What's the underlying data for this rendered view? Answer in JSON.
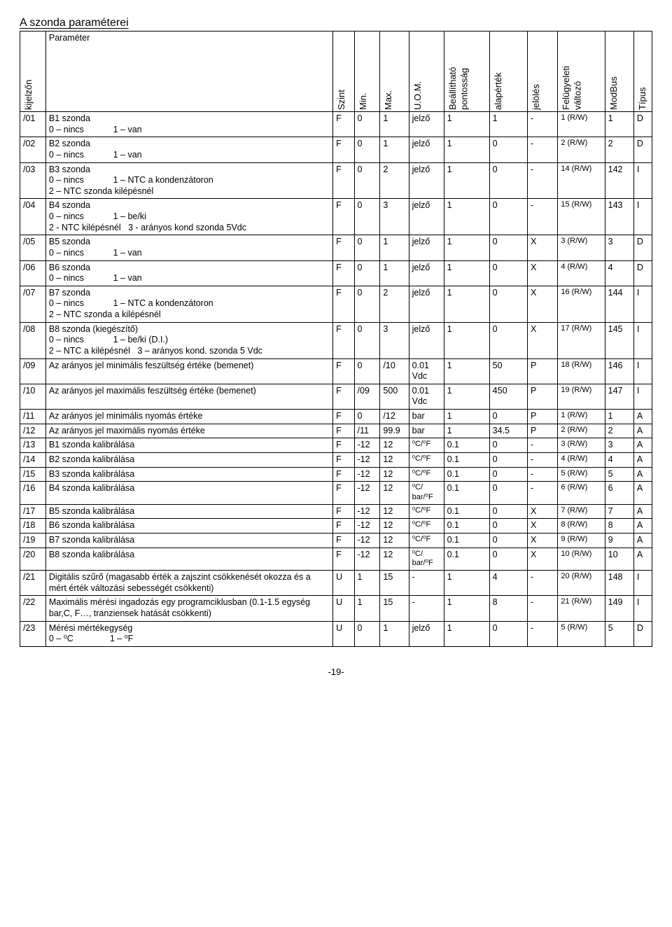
{
  "title": "A szonda paraméterei",
  "pageNumber": "-19-",
  "headers": {
    "c0": "kijelzőn",
    "c1": "Paraméter",
    "c2": "Szint",
    "c3": "Min.",
    "c4": "Max.",
    "c5": "U.O.M.",
    "c6": "Beállítható pontosság",
    "c7": "alapérték",
    "c8": "jelölés",
    "c9": "Felügyeleti változó",
    "c10": "ModBus",
    "c11": "Típus"
  },
  "rows": [
    {
      "code": "/01",
      "param": "B1 szonda\n0 – nincs            1 – van",
      "szint": "F",
      "min": "0",
      "max": "1",
      "uom": "jelző",
      "pont": "1",
      "alap": "1",
      "jel": "-",
      "fel": "1 (R/W)",
      "mod": "1",
      "tip": "D"
    },
    {
      "code": "/02",
      "param": "B2 szonda\n0 – nincs            1 – van",
      "szint": "F",
      "min": "0",
      "max": "1",
      "uom": "jelző",
      "pont": "1",
      "alap": "0",
      "jel": "-",
      "fel": "2 (R/W)",
      "mod": "2",
      "tip": "D"
    },
    {
      "code": "/03",
      "param": "B3 szonda\n0 – nincs            1 – NTC a kondenzátoron\n2 – NTC szonda kilépésnél",
      "szint": "F",
      "min": "0",
      "max": "2",
      "uom": "jelző",
      "pont": "1",
      "alap": "0",
      "jel": "-",
      "fel": "14 (R/W)",
      "mod": "142",
      "tip": "I"
    },
    {
      "code": "/04",
      "param": "B4 szonda\n0 – nincs            1 – be/ki\n2 - NTC kilépésnél   3 - arányos kond szonda 5Vdc",
      "szint": "F",
      "min": "0",
      "max": "3",
      "uom": "jelző",
      "pont": "1",
      "alap": "0",
      "jel": "-",
      "fel": "15 (R/W)",
      "mod": "143",
      "tip": "I"
    },
    {
      "code": "/05",
      "param": "B5 szonda\n0 – nincs            1 – van",
      "szint": "F",
      "min": "0",
      "max": "1",
      "uom": "jelző",
      "pont": "1",
      "alap": "0",
      "jel": "X",
      "fel": "3 (R/W)",
      "mod": "3",
      "tip": "D"
    },
    {
      "code": "/06",
      "param": "B6 szonda\n0 – nincs            1 – van",
      "szint": "F",
      "min": "0",
      "max": "1",
      "uom": "jelző",
      "pont": "1",
      "alap": "0",
      "jel": "X",
      "fel": "4 (R/W)",
      "mod": "4",
      "tip": "D"
    },
    {
      "code": "/07",
      "param": "B7 szonda\n0 – nincs            1 – NTC a kondenzátoron\n2 – NTC szonda a kilépésnél",
      "szint": "F",
      "min": "0",
      "max": "2",
      "uom": "jelző",
      "pont": "1",
      "alap": "0",
      "jel": "X",
      "fel": "16 (R/W)",
      "mod": "144",
      "tip": "I"
    },
    {
      "code": "/08",
      "param": "B8 szonda (kiegészítő)\n0 – nincs            1 – be/ki (D.I.)\n2 – NTC a kilépésnél   3 – arányos kond. szonda 5 Vdc",
      "szint": "F",
      "min": "0",
      "max": "3",
      "uom": "jelző",
      "pont": "1",
      "alap": "0",
      "jel": "X",
      "fel": "17 (R/W)",
      "mod": "145",
      "tip": "I"
    },
    {
      "code": "/09",
      "param": "Az arányos jel minimális feszültség értéke (bemenet)",
      "szint": "F",
      "min": "0",
      "max": "/10",
      "uom": "0.01\nVdc",
      "pont": "1",
      "alap": "50",
      "jel": "P",
      "fel": "18 (R/W)",
      "mod": "146",
      "tip": "I"
    },
    {
      "code": "/10",
      "param": "Az arányos jel maximális feszültség értéke (bemenet)",
      "szint": "F",
      "min": "/09",
      "max": "500",
      "uom": "0.01\nVdc",
      "pont": "1",
      "alap": "450",
      "jel": "P",
      "fel": "19 (R/W)",
      "mod": "147",
      "tip": "I"
    },
    {
      "code": "/11",
      "param": "Az arányos jel minimális nyomás értéke",
      "szint": "F",
      "min": "0",
      "max": "/12",
      "uom": "bar",
      "pont": "1",
      "alap": "0",
      "jel": "P",
      "fel": "1 (R/W)",
      "mod": "1",
      "tip": "A"
    },
    {
      "code": "/12",
      "param": "Az arányos jel maximális nyomás értéke",
      "szint": "F",
      "min": "/11",
      "max": "99.9",
      "uom": "bar",
      "pont": "1",
      "alap": "34.5",
      "jel": "P",
      "fel": "2 (R/W)",
      "mod": "2",
      "tip": "A"
    },
    {
      "code": "/13",
      "param": "B1 szonda kalibrálása",
      "szint": "F",
      "min": "-12",
      "max": "12",
      "uom": "⁰C/⁰F",
      "pont": "0.1",
      "alap": "0",
      "jel": "-",
      "fel": "3 (R/W)",
      "mod": "3",
      "tip": "A"
    },
    {
      "code": "/14",
      "param": "B2 szonda kalibrálása",
      "szint": "F",
      "min": "-12",
      "max": "12",
      "uom": "⁰C/⁰F",
      "pont": "0.1",
      "alap": "0",
      "jel": "-",
      "fel": "4 (R/W)",
      "mod": "4",
      "tip": "A"
    },
    {
      "code": "/15",
      "param": "B3 szonda kalibrálása",
      "szint": "F",
      "min": "-12",
      "max": "12",
      "uom": "⁰C/⁰F",
      "pont": "0.1",
      "alap": "0",
      "jel": "-",
      "fel": "5 (R/W)",
      "mod": "5",
      "tip": "A"
    },
    {
      "code": "/16",
      "param": "B4 szonda kalibrálása",
      "szint": "F",
      "min": "-12",
      "max": "12",
      "uom": "⁰C/\nbar/⁰F",
      "pont": "0.1",
      "alap": "0",
      "jel": "-",
      "fel": "6 (R/W)",
      "mod": "6",
      "tip": "A"
    },
    {
      "code": "/17",
      "param": "B5 szonda kalibrálása",
      "szint": "F",
      "min": "-12",
      "max": "12",
      "uom": "⁰C/⁰F",
      "pont": "0.1",
      "alap": "0",
      "jel": "X",
      "fel": "7 (R/W)",
      "mod": "7",
      "tip": "A"
    },
    {
      "code": "/18",
      "param": "B6 szonda kalibrálása",
      "szint": "F",
      "min": "-12",
      "max": "12",
      "uom": "⁰C/⁰F",
      "pont": "0.1",
      "alap": "0",
      "jel": "X",
      "fel": "8 (R/W)",
      "mod": "8",
      "tip": "A"
    },
    {
      "code": "/19",
      "param": "B7 szonda kalibrálása",
      "szint": "F",
      "min": "-12",
      "max": "12",
      "uom": "⁰C/⁰F",
      "pont": "0.1",
      "alap": "0",
      "jel": "X",
      "fel": "9 (R/W)",
      "mod": "9",
      "tip": "A"
    },
    {
      "code": "/20",
      "param": "B8 szonda kalibrálása",
      "szint": "F",
      "min": "-12",
      "max": "12",
      "uom": "⁰C/\nbar/⁰F",
      "pont": "0.1",
      "alap": "0",
      "jel": "X",
      "fel": "10 (R/W)",
      "mod": "10",
      "tip": "A"
    },
    {
      "code": "/21",
      "param": "Digitális szűrő (magasabb érték a zajszint csökkenését okozza és a mért érték változási sebességét csökkenti)",
      "szint": "U",
      "min": "1",
      "max": "15",
      "uom": "-",
      "pont": "1",
      "alap": "4",
      "jel": "-",
      "fel": "20 (R/W)",
      "mod": "148",
      "tip": "I"
    },
    {
      "code": "/22",
      "param": "Maximális mérési ingadozás egy programciklusban (0.1-1.5 egység bar,C, F…, tranziensek hatását csökkenti)",
      "szint": "U",
      "min": "1",
      "max": "15",
      "uom": "-",
      "pont": "1",
      "alap": "8",
      "jel": "-",
      "fel": "21 (R/W)",
      "mod": "149",
      "tip": "I"
    },
    {
      "code": "/23",
      "param": "Mérési mértékegység\n0 – ⁰C               1 – ⁰F",
      "szint": "U",
      "min": "0",
      "max": "1",
      "uom": "jelző",
      "pont": "1",
      "alap": "0",
      "jel": "-",
      "fel": "5 (R/W)",
      "mod": "5",
      "tip": "D"
    }
  ]
}
